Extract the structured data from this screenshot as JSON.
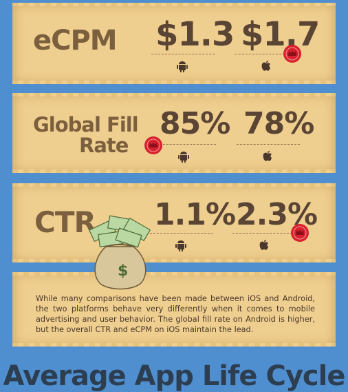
{
  "stats": {
    "ecpm": {
      "label": "eCPM",
      "android": "$1.3",
      "ios": "$1.7"
    },
    "fill": {
      "label_line1": "Global Fill",
      "label_line2": "Rate",
      "android": "85%",
      "ios": "78%"
    },
    "ctr": {
      "label": "CTR",
      "android": "1.1%",
      "ios": "2.3%"
    }
  },
  "paragraph": "While many comparisons have been made between iOS and Android, the two platforms behave very differently when it comes to mobile advertising and user behavior. The global fill rate on Android is higher, but the overall CTR and eCPM on iOS maintain the lead.",
  "footer": {
    "title": "Average App Life Cycle"
  },
  "icons": {
    "android": "android-icon",
    "apple": "apple-icon",
    "winner": "crown-seal-icon",
    "bag": "money-bag-icon"
  },
  "colors": {
    "background": "#4f8fd0",
    "parchment": "#efcf8f",
    "label": "#7b5f3e",
    "value": "#5a4434",
    "seal": "#d9202e"
  }
}
